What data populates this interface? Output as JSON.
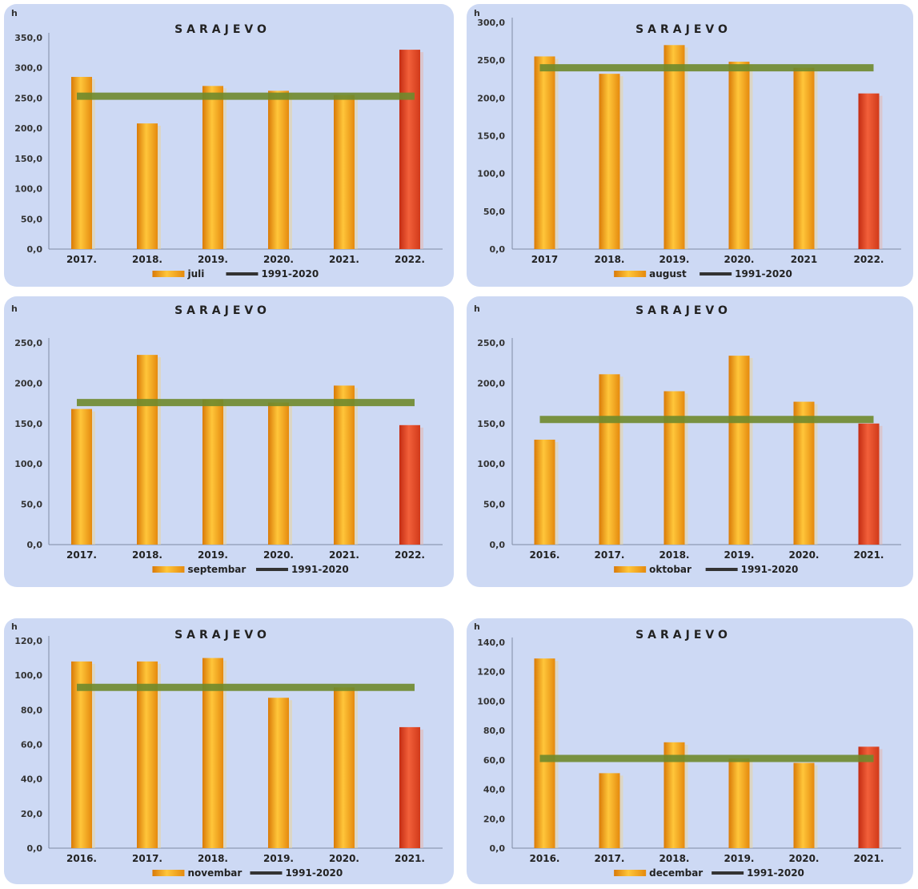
{
  "colors": {
    "bar": "#f29a12",
    "bar_highlight": "#e2401f",
    "normal_line": "#6f8a2d",
    "panel_bg": "#cdd9f4"
  },
  "chart_data": [
    {
      "type": "bar",
      "title": "SARAJEVO",
      "ylabel": "h",
      "ylim": [
        0,
        350
      ],
      "yticks": [
        "0,0",
        "50,0",
        "100,0",
        "150,0",
        "200,0",
        "250,0",
        "300,0",
        "350,0"
      ],
      "categories": [
        "2017.",
        "2018.",
        "2019.",
        "2020.",
        "2021.",
        "2022."
      ],
      "series": [
        {
          "name": "juli",
          "values": [
            285,
            208,
            270,
            262,
            255,
            330
          ]
        },
        {
          "name": "1991-2020",
          "values": [
            253,
            253,
            253,
            253,
            253,
            253
          ]
        }
      ],
      "highlight_index": 5,
      "grid": false,
      "legend_position": "bottom"
    },
    {
      "type": "bar",
      "title": "SARAJEVO",
      "ylabel": "h",
      "ylim": [
        0,
        300
      ],
      "yticks": [
        "0,0",
        "50,0",
        "100,0",
        "150,0",
        "200,0",
        "250,0",
        "300,0"
      ],
      "categories": [
        "2017",
        "2018.",
        "2019.",
        "2020.",
        "2021",
        "2022."
      ],
      "series": [
        {
          "name": "august",
          "values": [
            255,
            232,
            270,
            248,
            240,
            206
          ]
        },
        {
          "name": "1991-2020",
          "values": [
            240,
            240,
            240,
            240,
            240,
            240
          ]
        }
      ],
      "highlight_index": 5,
      "grid": false,
      "legend_position": "bottom"
    },
    {
      "type": "bar",
      "title": "SARAJEVO",
      "ylabel": "h",
      "ylim": [
        0,
        250
      ],
      "yticks": [
        "0,0",
        "50,0",
        "100,0",
        "150,0",
        "200,0",
        "250,0"
      ],
      "categories": [
        "2017.",
        "2018.",
        "2019.",
        "2020.",
        "2021.",
        "2022."
      ],
      "series": [
        {
          "name": "septembar",
          "values": [
            168,
            235,
            180,
            176,
            197,
            148
          ]
        },
        {
          "name": "1991-2020",
          "values": [
            176,
            176,
            176,
            176,
            176,
            176
          ]
        }
      ],
      "highlight_index": 5,
      "grid": false,
      "legend_position": "bottom"
    },
    {
      "type": "bar",
      "title": "SARAJEVO",
      "ylabel": "h",
      "ylim": [
        0,
        250
      ],
      "yticks": [
        "0,0",
        "50,0",
        "100,0",
        "150,0",
        "200,0",
        "250,0"
      ],
      "categories": [
        "2016.",
        "2017.",
        "2018.",
        "2019.",
        "2020.",
        "2021."
      ],
      "series": [
        {
          "name": "oktobar",
          "values": [
            130,
            211,
            190,
            234,
            177,
            150
          ]
        },
        {
          "name": "1991-2020",
          "values": [
            155,
            155,
            155,
            155,
            155,
            155
          ]
        }
      ],
      "highlight_index": 5,
      "grid": false,
      "legend_position": "bottom"
    },
    {
      "type": "bar",
      "title": "SARAJEVO",
      "ylabel": "h",
      "ylim": [
        0,
        120
      ],
      "yticks": [
        "0,0",
        "20,0",
        "40,0",
        "60,0",
        "80,0",
        "100,0",
        "120,0"
      ],
      "categories": [
        "2016.",
        "2017.",
        "2018.",
        "2019.",
        "2020.",
        "2021."
      ],
      "series": [
        {
          "name": "novembar",
          "values": [
            108,
            108,
            110,
            87,
            93,
            70
          ]
        },
        {
          "name": "1991-2020",
          "values": [
            93,
            93,
            93,
            93,
            93,
            93
          ]
        }
      ],
      "highlight_index": 5,
      "grid": false,
      "legend_position": "bottom"
    },
    {
      "type": "bar",
      "title": "SARAJEVO",
      "ylabel": "h",
      "ylim": [
        0,
        140
      ],
      "yticks": [
        "0,0",
        "20,0",
        "40,0",
        "60,0",
        "80,0",
        "100,0",
        "120,0",
        "140,0"
      ],
      "categories": [
        "2016.",
        "2017.",
        "2018.",
        "2019.",
        "2020.",
        "2021."
      ],
      "series": [
        {
          "name": "decembar",
          "values": [
            129,
            51,
            72,
            61,
            58,
            69
          ]
        },
        {
          "name": "1991-2020",
          "values": [
            61,
            61,
            61,
            61,
            61,
            61
          ]
        }
      ],
      "highlight_index": 5,
      "grid": false,
      "legend_position": "bottom"
    }
  ]
}
